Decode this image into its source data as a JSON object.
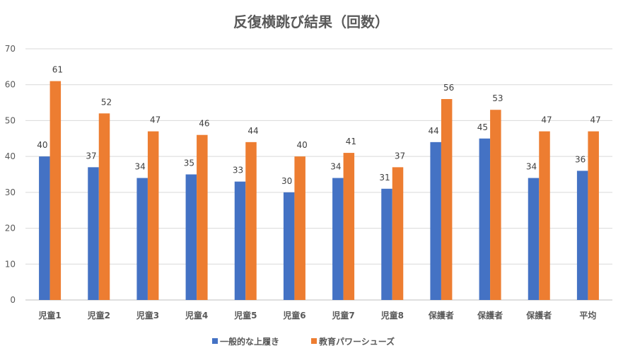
{
  "chart_data": {
    "type": "bar",
    "title": "反復横跳び結果（回数）",
    "xlabel": "",
    "ylabel": "",
    "ylim": [
      0,
      70
    ],
    "yticks": [
      0,
      10,
      20,
      30,
      40,
      50,
      60,
      70
    ],
    "grid": true,
    "legend_position": "bottom",
    "categories": [
      "児童1",
      "児童2",
      "児童3",
      "児童4",
      "児童5",
      "児童6",
      "児童7",
      "児童8",
      "保護者",
      "保護者",
      "保護者",
      "平均"
    ],
    "series": [
      {
        "name": "一般的な上履き",
        "color": "#4472C4",
        "values": [
          40,
          37,
          34,
          35,
          33,
          30,
          34,
          31,
          44,
          45,
          34,
          36
        ]
      },
      {
        "name": "教育パワーシューズ",
        "color": "#ED7D31",
        "values": [
          61,
          52,
          47,
          46,
          44,
          40,
          41,
          37,
          56,
          53,
          47,
          47
        ]
      }
    ]
  }
}
